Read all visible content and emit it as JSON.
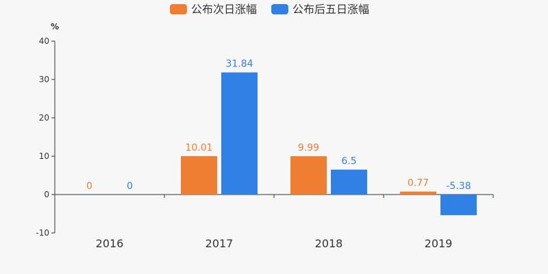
{
  "chart_data": {
    "type": "bar",
    "title": "",
    "xlabel": "",
    "ylabel": "%",
    "categories": [
      "2016",
      "2017",
      "2018",
      "2019"
    ],
    "series": [
      {
        "name": "公布次日涨幅",
        "color": "#ef7e32",
        "values": [
          0,
          10.01,
          9.99,
          0.77
        ]
      },
      {
        "name": "公布后五日涨幅",
        "color": "#3180e6",
        "values": [
          0,
          31.84,
          6.5,
          -5.38
        ]
      }
    ],
    "ylim": [
      -10,
      40
    ],
    "yticks": [
      -10,
      0,
      10,
      20,
      30,
      40
    ],
    "grid": false,
    "legend_position": "top-center"
  }
}
